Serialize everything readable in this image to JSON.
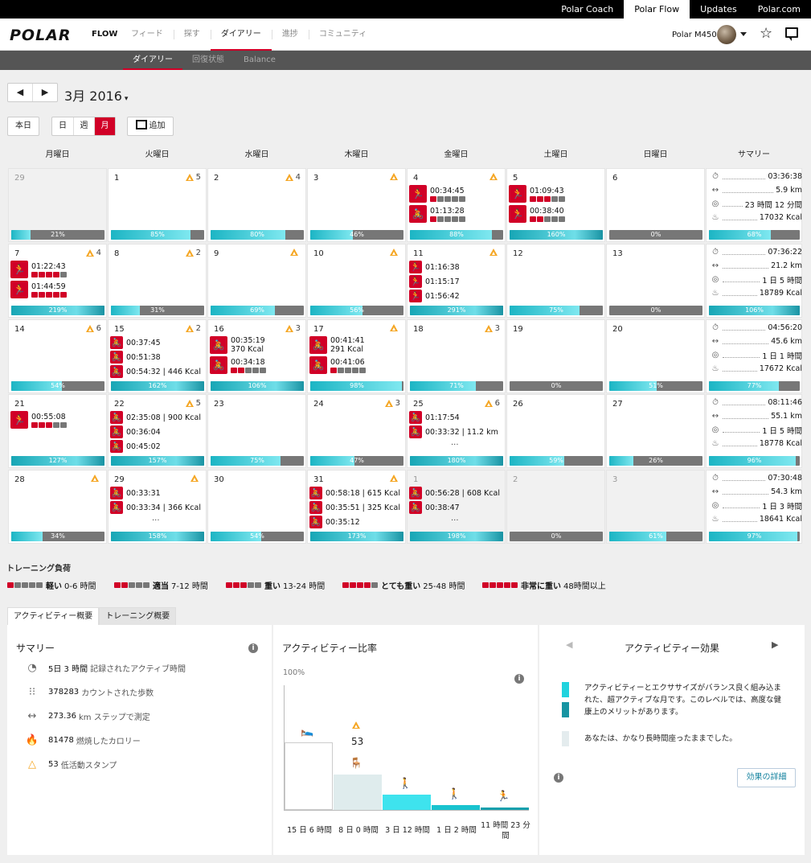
{
  "topbar": {
    "items": [
      "Polar Coach",
      "Polar Flow",
      "Updates",
      "Polar.com"
    ],
    "active": 1
  },
  "header": {
    "logo": "POLAR",
    "flow": "FLOW",
    "nav": [
      "フィード",
      "探す",
      "ダイアリー",
      "進捗",
      "コミュニティ"
    ],
    "nav_active": 2,
    "device": "Polar M450"
  },
  "subnav": {
    "items": [
      "ダイアリー",
      "回復状態",
      "Balance"
    ],
    "active": 0
  },
  "toolbar": {
    "month_title": "3月 2016",
    "today": "本日",
    "views": [
      "日",
      "週",
      "月"
    ],
    "view_active": 2,
    "add": "追加"
  },
  "calendar": {
    "days": [
      "月曜日",
      "火曜日",
      "水曜日",
      "木曜日",
      "金曜日",
      "土曜日",
      "日曜日",
      "サマリー"
    ],
    "weeks": [
      {
        "cells": [
          {
            "d": "29",
            "out": true,
            "pct": 21
          },
          {
            "d": "1",
            "stamp": "5",
            "pct": 85
          },
          {
            "d": "2",
            "stamp": "4",
            "pct": 80
          },
          {
            "d": "3",
            "stamp": "",
            "pct": 46
          },
          {
            "d": "4",
            "stamp": "",
            "pct": 88,
            "acts": [
              {
                "t": "00:34:45",
                "ic": "run",
                "load": 1
              },
              {
                "t": "01:13:28",
                "ic": "bike",
                "load": 1
              }
            ]
          },
          {
            "d": "5",
            "pct": 160,
            "acts": [
              {
                "t": "01:09:43",
                "ic": "run",
                "load": 3
              },
              {
                "t": "00:38:40",
                "ic": "run",
                "load": 2
              }
            ]
          },
          {
            "d": "6",
            "pct": 0
          }
        ],
        "summary": {
          "time": "03:36:38",
          "dist": "5.9 km",
          "active": "23 時間 12 分間",
          "kcal": "17032 Kcal",
          "pct": 68
        }
      },
      {
        "cells": [
          {
            "d": "7",
            "stamp": "4",
            "pct": 219,
            "acts": [
              {
                "t": "01:22:43",
                "ic": "run",
                "load": 4
              },
              {
                "t": "01:44:59",
                "ic": "run",
                "load": 5
              }
            ]
          },
          {
            "d": "8",
            "stamp": "2",
            "pct": 31
          },
          {
            "d": "9",
            "stamp": "",
            "pct": 69
          },
          {
            "d": "10",
            "stamp": "",
            "pct": 56
          },
          {
            "d": "11",
            "stamp": "",
            "pct": 291,
            "small": [
              {
                "t": "01:16:38",
                "ic": "run"
              },
              {
                "t": "01:15:17",
                "ic": "run"
              },
              {
                "t": "01:56:42",
                "ic": "run"
              }
            ]
          },
          {
            "d": "12",
            "pct": 75
          },
          {
            "d": "13",
            "pct": 0
          }
        ],
        "summary": {
          "time": "07:36:22",
          "dist": "21.2 km",
          "active": "1 日 5 時間",
          "kcal": "18789 Kcal",
          "pct": 106
        }
      },
      {
        "cells": [
          {
            "d": "14",
            "stamp": "6",
            "pct": 54
          },
          {
            "d": "15",
            "stamp": "2",
            "pct": 162,
            "small": [
              {
                "t": "00:37:45",
                "ic": "bike"
              },
              {
                "t": "00:51:38",
                "ic": "bike"
              },
              {
                "t": "00:54:32 | 446 Kcal",
                "ic": "bike"
              }
            ]
          },
          {
            "d": "16",
            "stamp": "3",
            "pct": 106,
            "acts": [
              {
                "t": "00:35:19",
                "t2": "370 Kcal",
                "ic": "bike"
              },
              {
                "t": "00:34:18",
                "ic": "bike",
                "load": 2
              }
            ]
          },
          {
            "d": "17",
            "stamp": "",
            "pct": 98,
            "acts": [
              {
                "t": "00:41:41",
                "t2": "291 Kcal",
                "ic": "bike"
              },
              {
                "t": "00:41:06",
                "ic": "bike",
                "load": 1
              }
            ]
          },
          {
            "d": "18",
            "stamp": "3",
            "pct": 71
          },
          {
            "d": "19",
            "pct": 0
          },
          {
            "d": "20",
            "pct": 51
          }
        ],
        "summary": {
          "time": "04:56:20",
          "dist": "45.6 km",
          "active": "1 日 1 時間",
          "kcal": "17672 Kcal",
          "pct": 77
        }
      },
      {
        "cells": [
          {
            "d": "21",
            "pct": 127,
            "acts": [
              {
                "t": "00:55:08",
                "ic": "run",
                "load": 3
              }
            ]
          },
          {
            "d": "22",
            "stamp": "5",
            "pct": 157,
            "small": [
              {
                "t": "02:35:08 | 900 Kcal",
                "ic": "bike"
              },
              {
                "t": "00:36:04",
                "ic": "bike"
              },
              {
                "t": "00:45:02",
                "ic": "bike"
              }
            ]
          },
          {
            "d": "23",
            "pct": 75
          },
          {
            "d": "24",
            "stamp": "3",
            "pct": 47
          },
          {
            "d": "25",
            "stamp": "6",
            "pct": 180,
            "small": [
              {
                "t": "01:17:54",
                "ic": "bike"
              },
              {
                "t": "00:33:32 | 11.2 km",
                "ic": "bike"
              }
            ],
            "more": true
          },
          {
            "d": "26",
            "pct": 59
          },
          {
            "d": "27",
            "pct": 26
          }
        ],
        "summary": {
          "time": "08:11:46",
          "dist": "55.1 km",
          "active": "1 日 5 時間",
          "kcal": "18778 Kcal",
          "pct": 96
        }
      },
      {
        "cells": [
          {
            "d": "28",
            "stamp": "",
            "pct": 34
          },
          {
            "d": "29",
            "stamp": "",
            "pct": 158,
            "small": [
              {
                "t": "00:33:31",
                "ic": "bike"
              },
              {
                "t": "00:33:34 | 366 Kcal",
                "ic": "bike"
              }
            ],
            "more": true
          },
          {
            "d": "30",
            "pct": 54
          },
          {
            "d": "31",
            "stamp": "",
            "pct": 173,
            "small": [
              {
                "t": "00:58:18 | 615 Kcal",
                "ic": "bike"
              },
              {
                "t": "00:35:51 | 325 Kcal",
                "ic": "bike"
              },
              {
                "t": "00:35:12",
                "ic": "bike"
              }
            ]
          },
          {
            "d": "1",
            "out": true,
            "pct": 198,
            "small": [
              {
                "t": "00:56:28 | 608 Kcal",
                "ic": "bike"
              },
              {
                "t": "00:38:47",
                "ic": "bike"
              }
            ],
            "more": true
          },
          {
            "d": "2",
            "out": true,
            "pct": 0
          },
          {
            "d": "3",
            "out": true,
            "pct": 61
          }
        ],
        "summary": {
          "time": "07:30:48",
          "dist": "54.3 km",
          "active": "1 日 3 時間",
          "kcal": "18641 Kcal",
          "pct": 97
        }
      }
    ]
  },
  "legend": {
    "title": "トレーニング負荷",
    "items": [
      {
        "n": 1,
        "name": "軽い",
        "range": "0-6 時間"
      },
      {
        "n": 2,
        "name": "適当",
        "range": "7-12 時間"
      },
      {
        "n": 3,
        "name": "重い",
        "range": "13-24 時間"
      },
      {
        "n": 4,
        "name": "とても重い",
        "range": "25-48 時間"
      },
      {
        "n": 5,
        "name": "非常に重い",
        "range": "48時間以上"
      }
    ]
  },
  "tabs": [
    "アクティビティー概要",
    "トレーニング概要"
  ],
  "summary_panel": {
    "title": "サマリー",
    "lines": [
      {
        "v": "5日 3 時間",
        "l": "記録されたアクティブ時間",
        "icon": "active-time-icon"
      },
      {
        "v": "378283",
        "l": "カウントされた歩数",
        "icon": "steps-icon"
      },
      {
        "v": "273.36",
        "l": "km ステップで測定",
        "icon": "distance-icon"
      },
      {
        "v": "81478",
        "l": "燃焼したカロリー",
        "icon": "flame-icon"
      },
      {
        "v": "53",
        "l": "低活動スタンプ",
        "icon": "stamp-icon"
      }
    ]
  },
  "ratio_panel": {
    "title": "アクティビティー比率",
    "y_label": "100%",
    "stamp_count": "53",
    "labels": [
      "15 日 6 時間",
      "8 日 0 時間",
      "3 日 12 時間",
      "1 日 2 時間",
      "11 時間 23 分間"
    ]
  },
  "chart_data": {
    "type": "bar",
    "categories": [
      "15 日 6 時間",
      "8 日 0 時間",
      "3 日 12 時間",
      "1 日 2 時間",
      "11 時間 23 分間"
    ],
    "values": [
      15.25,
      8.0,
      3.5,
      1.08,
      0.47
    ],
    "ylabel": "100%",
    "colors": [
      "#ffffff",
      "#dfeced",
      "#3ee3ee",
      "#19c3cf",
      "#15a0ad"
    ]
  },
  "effect_panel": {
    "title": "アクティビティー効果",
    "text1": "アクティビティーとエクササイズがバランス良く組み込まれた、超アクティブな月です。このレベルでは、高度な健康上のメリットがあります。",
    "text2": "あなたは、かなり長時間座ったままでした。",
    "button": "効果の詳細",
    "colors": [
      "#21d3de",
      "#1694a2",
      "#e4ecee"
    ]
  }
}
